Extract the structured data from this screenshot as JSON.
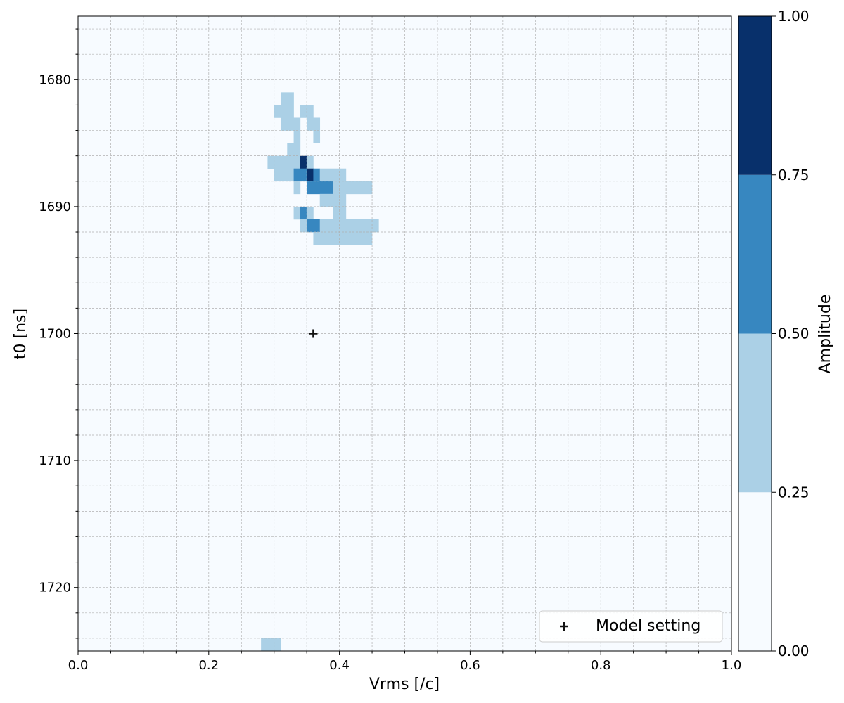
{
  "chart_data": {
    "type": "heatmap",
    "xlabel": "Vrms [/c]",
    "ylabel": "t0 [ns]",
    "xlim": [
      0.0,
      1.0
    ],
    "ylim": [
      1725,
      1675
    ],
    "x_cell": 0.01,
    "y_cell": 1.0,
    "x_ticks": [
      "0.0",
      "0.2",
      "0.4",
      "0.6",
      "0.8",
      "1.0"
    ],
    "x_tick_values": [
      0.0,
      0.2,
      0.4,
      0.6,
      0.8,
      1.0
    ],
    "y_ticks": [
      "1680",
      "1690",
      "1700",
      "1710",
      "1720"
    ],
    "y_tick_values": [
      1680,
      1690,
      1700,
      1710,
      1720
    ],
    "grid": true,
    "background_amplitude": 0.0,
    "cells": [
      {
        "x0": 0.31,
        "x1": 0.33,
        "t0": 1681,
        "t1": 1682,
        "v": 0.4
      },
      {
        "x0": 0.3,
        "x1": 0.33,
        "t0": 1682,
        "t1": 1683,
        "v": 0.4
      },
      {
        "x0": 0.34,
        "x1": 0.36,
        "t0": 1682,
        "t1": 1683,
        "v": 0.4
      },
      {
        "x0": 0.31,
        "x1": 0.34,
        "t0": 1683,
        "t1": 1684,
        "v": 0.4
      },
      {
        "x0": 0.35,
        "x1": 0.37,
        "t0": 1683,
        "t1": 1684,
        "v": 0.4
      },
      {
        "x0": 0.33,
        "x1": 0.34,
        "t0": 1684,
        "t1": 1685,
        "v": 0.4
      },
      {
        "x0": 0.36,
        "x1": 0.37,
        "t0": 1684,
        "t1": 1685,
        "v": 0.4
      },
      {
        "x0": 0.32,
        "x1": 0.34,
        "t0": 1685,
        "t1": 1686,
        "v": 0.4
      },
      {
        "x0": 0.29,
        "x1": 0.34,
        "t0": 1686,
        "t1": 1687,
        "v": 0.4
      },
      {
        "x0": 0.34,
        "x1": 0.35,
        "t0": 1686,
        "t1": 1687,
        "v": 1.0
      },
      {
        "x0": 0.35,
        "x1": 0.36,
        "t0": 1686,
        "t1": 1687,
        "v": 0.4
      },
      {
        "x0": 0.3,
        "x1": 0.33,
        "t0": 1687,
        "t1": 1688,
        "v": 0.4
      },
      {
        "x0": 0.33,
        "x1": 0.35,
        "t0": 1687,
        "t1": 1688,
        "v": 0.65
      },
      {
        "x0": 0.35,
        "x1": 0.36,
        "t0": 1687,
        "t1": 1688,
        "v": 1.0
      },
      {
        "x0": 0.36,
        "x1": 0.37,
        "t0": 1687,
        "t1": 1688,
        "v": 0.65
      },
      {
        "x0": 0.37,
        "x1": 0.41,
        "t0": 1687,
        "t1": 1688,
        "v": 0.4
      },
      {
        "x0": 0.33,
        "x1": 0.34,
        "t0": 1688,
        "t1": 1689,
        "v": 0.4
      },
      {
        "x0": 0.35,
        "x1": 0.39,
        "t0": 1688,
        "t1": 1689,
        "v": 0.65
      },
      {
        "x0": 0.39,
        "x1": 0.45,
        "t0": 1688,
        "t1": 1689,
        "v": 0.4
      },
      {
        "x0": 0.37,
        "x1": 0.41,
        "t0": 1689,
        "t1": 1690,
        "v": 0.4
      },
      {
        "x0": 0.33,
        "x1": 0.34,
        "t0": 1690,
        "t1": 1691,
        "v": 0.4
      },
      {
        "x0": 0.34,
        "x1": 0.35,
        "t0": 1690,
        "t1": 1691,
        "v": 0.65
      },
      {
        "x0": 0.35,
        "x1": 0.36,
        "t0": 1690,
        "t1": 1691,
        "v": 0.4
      },
      {
        "x0": 0.39,
        "x1": 0.41,
        "t0": 1690,
        "t1": 1691,
        "v": 0.4
      },
      {
        "x0": 0.34,
        "x1": 0.35,
        "t0": 1691,
        "t1": 1692,
        "v": 0.4
      },
      {
        "x0": 0.35,
        "x1": 0.37,
        "t0": 1691,
        "t1": 1692,
        "v": 0.65
      },
      {
        "x0": 0.37,
        "x1": 0.46,
        "t0": 1691,
        "t1": 1692,
        "v": 0.4
      },
      {
        "x0": 0.36,
        "x1": 0.45,
        "t0": 1692,
        "t1": 1693,
        "v": 0.4
      },
      {
        "x0": 0.28,
        "x1": 0.31,
        "t0": 1724,
        "t1": 1725,
        "v": 0.4
      }
    ],
    "model_setting": {
      "x": 0.36,
      "t0": 1700
    },
    "legend": {
      "label": "Model setting",
      "placement": "lower right"
    },
    "colorbar": {
      "label": "Amplitude",
      "ticks": [
        "0.00",
        "0.25",
        "0.50",
        "0.75",
        "1.00"
      ],
      "tick_values": [
        0.0,
        0.25,
        0.5,
        0.75,
        1.0
      ],
      "bins": [
        {
          "from": 0.0,
          "to": 0.25,
          "color": "#f7fbff"
        },
        {
          "from": 0.25,
          "to": 0.5,
          "color": "#abd0e6"
        },
        {
          "from": 0.5,
          "to": 0.75,
          "color": "#3787c0"
        },
        {
          "from": 0.75,
          "to": 1.0,
          "color": "#08306b"
        }
      ]
    }
  }
}
